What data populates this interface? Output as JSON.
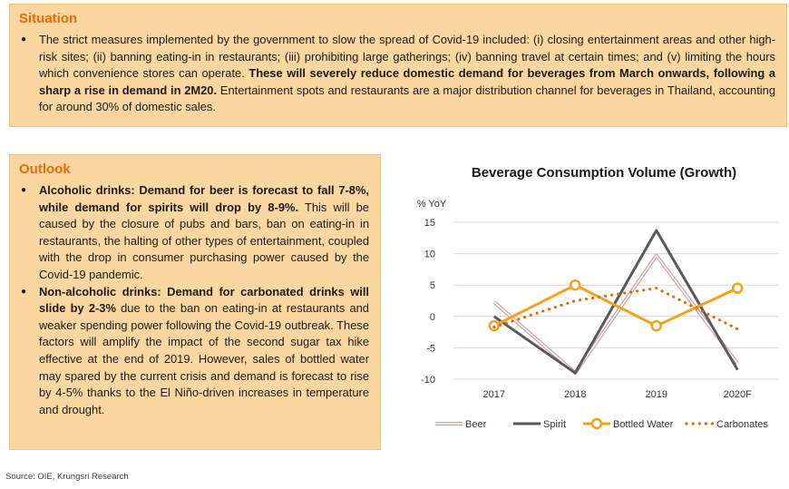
{
  "situation": {
    "title": "Situation",
    "p1_text": "The strict measures implemented by the government to slow the spread of Covid-19 included: (i) closing entertainment areas and other high-risk sites; (ii) banning eating-in in restaurants; (iii) prohibiting large gatherings; (iv) banning travel at certain times; and (v) limiting the hours which convenience stores can operate. ",
    "p1_bold": "These will severely reduce domestic demand for beverages from March onwards, following a sharp a rise in demand in 2M20.",
    "p1_tail": " Entertainment spots and restaurants are a major distribution channel for beverages in Thailand, accounting for around 30% of domestic sales."
  },
  "outlook": {
    "title": "Outlook",
    "items": [
      {
        "bold": "Alcoholic drinks: Demand for beer is forecast to fall 7-8%, while demand for spirits will drop by 8-9%.",
        "text": " This will be caused by the closure of pubs and bars, ban on eating-in in restaurants, the halting of other types of entertainment, coupled with the drop in consumer purchasing power caused by the Covid-19 pandemic."
      },
      {
        "bold": "Non-alcoholic drinks: Demand for carbonated drinks will slide by 2-3%",
        "text": " due to the ban on eating-in at restaurants and weaker spending power following the Covid-19 outbreak. These factors will amplify the impact of the second sugar tax hike effective at the end of 2019. However, sales of bottled water may spared by the current crisis and demand is forecast to rise by 4-5% thanks to the El Niño-driven increases in temperature and drought."
      }
    ]
  },
  "chart_data": {
    "type": "line",
    "title": "Beverage Consumption Volume (Growth)",
    "ylabel": "% YoY",
    "xlabel": "",
    "categories": [
      "2017",
      "2018",
      "2019",
      "2020F"
    ],
    "ylim": [
      -10,
      15
    ],
    "yticks": [
      15,
      10,
      5,
      0,
      -5,
      -10
    ],
    "grid": true,
    "legend_position": "bottom",
    "series": [
      {
        "name": "Beer",
        "values": [
          2.3,
          -9.0,
          9.7,
          -7.5
        ],
        "color": "#c9a5a5",
        "style": "double"
      },
      {
        "name": "Spirit",
        "values": [
          0.0,
          -9.0,
          13.7,
          -8.5
        ],
        "color": "#595959",
        "style": "solid"
      },
      {
        "name": "Bottled Water",
        "values": [
          -1.5,
          5.0,
          -1.5,
          4.5
        ],
        "color": "#f79f1f",
        "style": "marker"
      },
      {
        "name": "Carbonates",
        "values": [
          -1.7,
          2.5,
          4.5,
          -2.0
        ],
        "color": "#e46c0a",
        "style": "dotted"
      }
    ]
  },
  "source": "Source: OIE, Krungsri Research"
}
